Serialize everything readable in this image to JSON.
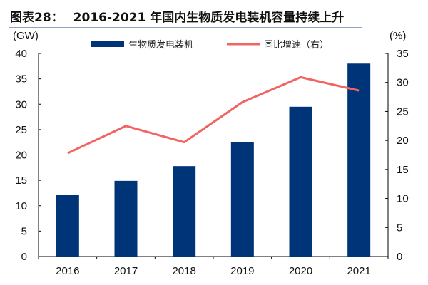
{
  "title": {
    "label": "图表28：",
    "text": "2016-2021 年国内生物质发电装机容量持续上升"
  },
  "chart_data": {
    "type": "bar+line",
    "categories": [
      "2016",
      "2017",
      "2018",
      "2019",
      "2020",
      "2021"
    ],
    "series": [
      {
        "name": "生物质发电装机",
        "type": "bar",
        "axis": "left",
        "color": "#003478",
        "values": [
          12.1,
          14.9,
          17.8,
          22.5,
          29.5,
          38.0
        ]
      },
      {
        "name": "同比增速（右）",
        "type": "line",
        "axis": "right",
        "color": "#f26461",
        "values": [
          17.8,
          22.5,
          19.7,
          26.6,
          30.9,
          28.6
        ]
      }
    ],
    "y_left": {
      "label": "(GW)",
      "range": [
        0,
        40
      ],
      "ticks": [
        0,
        5,
        10,
        15,
        20,
        25,
        30,
        35,
        40
      ]
    },
    "y_right": {
      "label": "(%)",
      "range": [
        0,
        35
      ],
      "ticks": [
        0,
        5,
        10,
        15,
        20,
        25,
        30,
        35
      ]
    },
    "grid": false,
    "legend_position": "top"
  }
}
